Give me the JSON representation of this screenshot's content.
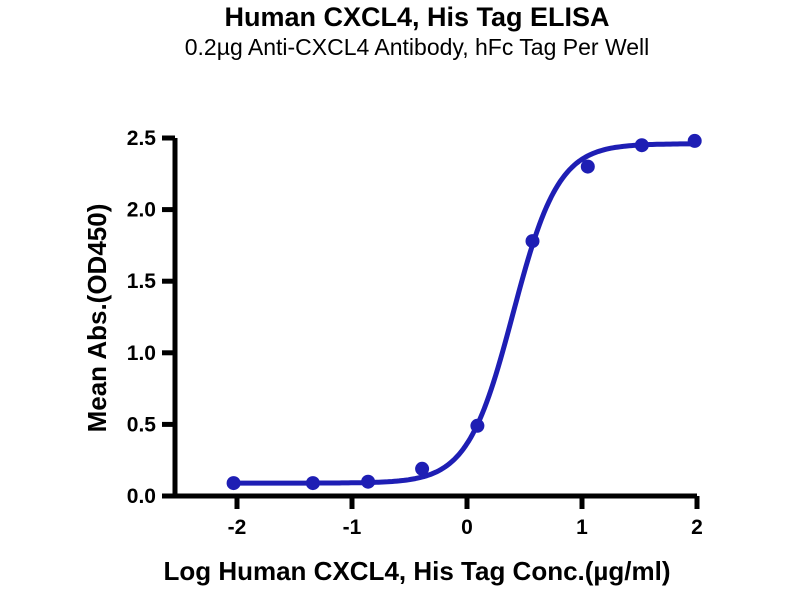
{
  "page": {
    "title": "Human CXCL4, His Tag ELISA",
    "subtitle": "0.2µg Anti-CXCL4 Antibody, hFc Tag Per Well"
  },
  "chart_data": {
    "type": "scatter",
    "title": "Human CXCL4, His Tag ELISA",
    "subtitle": "0.2µg Anti-CXCL4 Antibody, hFc Tag Per Well",
    "xlabel": "Log Human CXCL4, His Tag Conc.(µg/ml)",
    "ylabel": "Mean Abs.(OD450)",
    "xlim": [
      -2.55,
      2.0
    ],
    "ylim": [
      0,
      2.5
    ],
    "x_ticks": [
      -2,
      -1,
      0,
      1,
      2
    ],
    "x_tick_labels": [
      "-2",
      "-1",
      "0",
      "1",
      "2"
    ],
    "y_ticks": [
      0,
      0.5,
      1,
      1.5,
      2,
      2.5
    ],
    "y_tick_labels": [
      "0.0",
      "0.5",
      "1.0",
      "1.5",
      "2.0",
      "2.5"
    ],
    "grid": false,
    "legend": null,
    "series": [
      {
        "name": "Human CXCL4, His Tag",
        "x": [
          -2.03,
          -1.34,
          -0.86,
          -0.39,
          0.09,
          0.57,
          1.05,
          1.52,
          1.98
        ],
        "y": [
          0.09,
          0.09,
          0.1,
          0.19,
          0.49,
          1.78,
          2.3,
          2.45,
          2.48
        ]
      }
    ],
    "fit_curve": {
      "model": "4PL sigmoid",
      "bottom": 0.09,
      "top": 2.46,
      "logEC50": 0.4,
      "hillslope": 2.2,
      "x_start": -2.03,
      "x_end": 1.98
    },
    "colors": {
      "curve": "#1e1eb4",
      "axis": "#000000",
      "text": "#000000",
      "background": "#ffffff"
    }
  }
}
